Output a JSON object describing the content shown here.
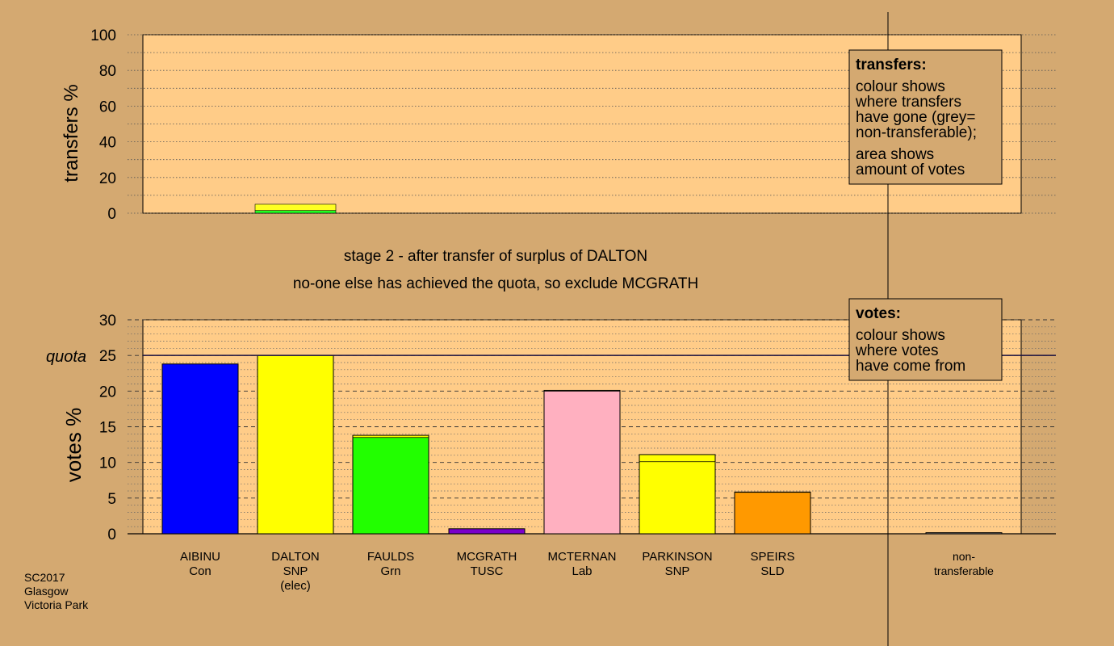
{
  "stage_heading": "stage 2 - after transfer of surplus of DALTON",
  "stage_note": "no-one else has achieved the quota, so exclude MCGRATH",
  "footer": {
    "line1": "SC2017",
    "line2": "Glasgow",
    "line3": "Victoria Park"
  },
  "legend_transfers": {
    "title": "transfers:",
    "lines": [
      "colour shows",
      "where transfers",
      "have gone (grey=",
      "non-transferable);",
      "area shows",
      "amount of votes"
    ]
  },
  "legend_votes": {
    "title": "votes:",
    "lines": [
      "colour shows",
      "where votes",
      "have come from"
    ]
  },
  "chart_data": [
    {
      "type": "bar",
      "ylabel": "transfers %",
      "ylim": [
        0,
        100
      ],
      "yticks": [
        "0",
        "20",
        "40",
        "60",
        "80",
        "100"
      ],
      "grid": true,
      "bars": [
        {
          "category": "DALTON",
          "segments": [
            {
              "value": 1.5,
              "color": "#22ff22"
            },
            {
              "value": 3.5,
              "color": "#ffff22"
            }
          ]
        }
      ]
    },
    {
      "type": "bar",
      "ylabel": "votes %",
      "ylim": [
        0,
        30
      ],
      "yticks": [
        "0",
        "5",
        "10",
        "15",
        "20",
        "25",
        "30"
      ],
      "quota": 25,
      "quota_label": "quota",
      "grid": true,
      "categories": [
        {
          "name": "AIBINU",
          "party": "Con",
          "extra": ""
        },
        {
          "name": "DALTON",
          "party": "SNP",
          "extra": "(elec)"
        },
        {
          "name": "FAULDS",
          "party": "Grn",
          "extra": ""
        },
        {
          "name": "MCGRATH",
          "party": "TUSC",
          "extra": ""
        },
        {
          "name": "MCTERNAN",
          "party": "Lab",
          "extra": ""
        },
        {
          "name": "PARKINSON",
          "party": "SNP",
          "extra": ""
        },
        {
          "name": "SPEIRS",
          "party": "SLD",
          "extra": ""
        },
        {
          "name": "non-",
          "party": "transferable",
          "extra": ""
        }
      ],
      "bars": [
        {
          "category": "AIBINU",
          "segments": [
            {
              "value": 23.8,
              "color": "#0000ff"
            }
          ]
        },
        {
          "category": "DALTON",
          "segments": [
            {
              "value": 25.0,
              "color": "#ffff00"
            }
          ]
        },
        {
          "category": "FAULDS",
          "segments": [
            {
              "value": 13.5,
              "color": "#22ff00"
            },
            {
              "value": 0.3,
              "color": "#ffff00"
            }
          ]
        },
        {
          "category": "MCGRATH",
          "segments": [
            {
              "value": 0.7,
              "color": "#7a00cc"
            }
          ]
        },
        {
          "category": "MCTERNAN",
          "segments": [
            {
              "value": 20.0,
              "color": "#ffb0c0"
            },
            {
              "value": 0.1,
              "color": "#ffff00"
            }
          ]
        },
        {
          "category": "PARKINSON",
          "segments": [
            {
              "value": 10.1,
              "color": "#ffff00"
            },
            {
              "value": 1.0,
              "color": "#ffff00"
            }
          ]
        },
        {
          "category": "SPEIRS",
          "segments": [
            {
              "value": 5.8,
              "color": "#ff9900"
            },
            {
              "value": 0.05,
              "color": "#ffff00"
            }
          ]
        },
        {
          "category": "non-transferable",
          "segments": [
            {
              "value": 0.15,
              "color": "#b0b0b0"
            }
          ]
        }
      ]
    }
  ]
}
